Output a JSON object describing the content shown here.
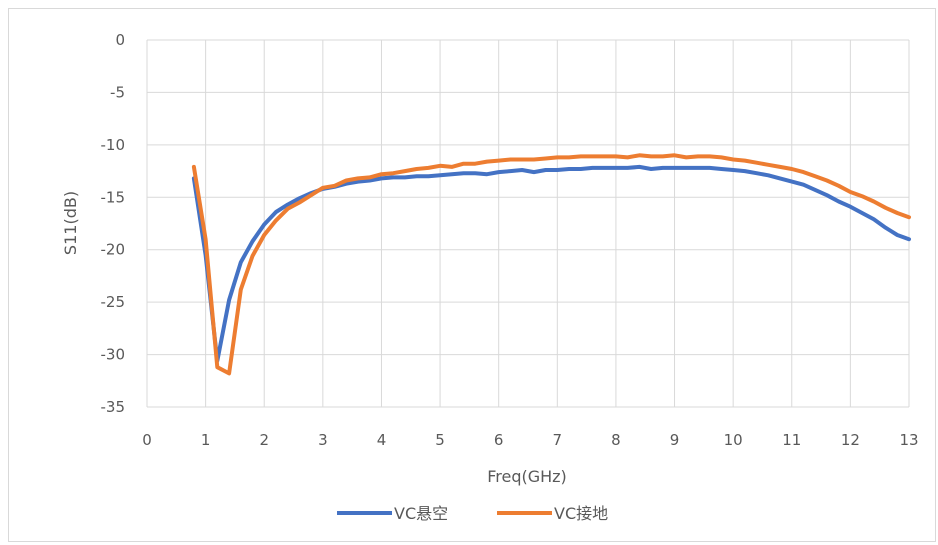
{
  "chart_data": {
    "type": "line",
    "xlabel": "Freq(GHz)",
    "ylabel": "S11(dB)",
    "xlim": [
      0,
      13
    ],
    "ylim": [
      -35,
      0
    ],
    "x_ticks": [
      "0",
      "1",
      "2",
      "3",
      "4",
      "5",
      "6",
      "7",
      "8",
      "9",
      "10",
      "11",
      "12",
      "13"
    ],
    "y_ticks": [
      "0",
      "-5",
      "-10",
      "-15",
      "-20",
      "-25",
      "-30",
      "-35"
    ],
    "grid": true,
    "legend_position": "bottom",
    "series": [
      {
        "name": "VC悬空",
        "color": "#4472c4",
        "x": [
          0.8,
          1.0,
          1.2,
          1.4,
          1.6,
          1.8,
          2.0,
          2.2,
          2.4,
          2.6,
          2.8,
          3.0,
          3.2,
          3.4,
          3.6,
          3.8,
          4.0,
          4.2,
          4.4,
          4.6,
          4.8,
          5.0,
          5.2,
          5.4,
          5.6,
          5.8,
          6.0,
          6.2,
          6.4,
          6.6,
          6.8,
          7.0,
          7.2,
          7.4,
          7.6,
          7.8,
          8.0,
          8.2,
          8.4,
          8.6,
          8.8,
          9.0,
          9.2,
          9.4,
          9.6,
          9.8,
          10.0,
          10.2,
          10.4,
          10.6,
          10.8,
          11.0,
          11.2,
          11.4,
          11.6,
          11.8,
          12.0,
          12.2,
          12.4,
          12.6,
          12.8,
          13.0
        ],
        "y": [
          -13.2,
          -20.5,
          -30.6,
          -24.8,
          -21.2,
          -19.2,
          -17.6,
          -16.4,
          -15.7,
          -15.1,
          -14.6,
          -14.2,
          -14.0,
          -13.7,
          -13.5,
          -13.4,
          -13.2,
          -13.1,
          -13.1,
          -13.0,
          -13.0,
          -12.9,
          -12.8,
          -12.7,
          -12.7,
          -12.8,
          -12.6,
          -12.5,
          -12.4,
          -12.6,
          -12.4,
          -12.4,
          -12.3,
          -12.3,
          -12.2,
          -12.2,
          -12.2,
          -12.2,
          -12.1,
          -12.3,
          -12.2,
          -12.2,
          -12.2,
          -12.2,
          -12.2,
          -12.3,
          -12.4,
          -12.5,
          -12.7,
          -12.9,
          -13.2,
          -13.5,
          -13.8,
          -14.3,
          -14.8,
          -15.4,
          -15.9,
          -16.5,
          -17.1,
          -17.9,
          -18.6,
          -19.0
        ]
      },
      {
        "name": "VC接地",
        "color": "#ed7d31",
        "x": [
          0.8,
          1.0,
          1.2,
          1.4,
          1.6,
          1.8,
          2.0,
          2.2,
          2.4,
          2.6,
          2.8,
          3.0,
          3.2,
          3.4,
          3.6,
          3.8,
          4.0,
          4.2,
          4.4,
          4.6,
          4.8,
          5.0,
          5.2,
          5.4,
          5.6,
          5.8,
          6.0,
          6.2,
          6.4,
          6.6,
          6.8,
          7.0,
          7.2,
          7.4,
          7.6,
          7.8,
          8.0,
          8.2,
          8.4,
          8.6,
          8.8,
          9.0,
          9.2,
          9.4,
          9.6,
          9.8,
          10.0,
          10.2,
          10.4,
          10.6,
          10.8,
          11.0,
          11.2,
          11.4,
          11.6,
          11.8,
          12.0,
          12.2,
          12.4,
          12.6,
          12.8,
          13.0
        ],
        "y": [
          -12.1,
          -19.0,
          -31.2,
          -31.8,
          -23.8,
          -20.6,
          -18.6,
          -17.2,
          -16.1,
          -15.5,
          -14.8,
          -14.1,
          -13.9,
          -13.4,
          -13.2,
          -13.1,
          -12.8,
          -12.7,
          -12.5,
          -12.3,
          -12.2,
          -12.0,
          -12.1,
          -11.8,
          -11.8,
          -11.6,
          -11.5,
          -11.4,
          -11.4,
          -11.4,
          -11.3,
          -11.2,
          -11.2,
          -11.1,
          -11.1,
          -11.1,
          -11.1,
          -11.2,
          -11.0,
          -11.1,
          -11.1,
          -11.0,
          -11.2,
          -11.1,
          -11.1,
          -11.2,
          -11.4,
          -11.5,
          -11.7,
          -11.9,
          -12.1,
          -12.3,
          -12.6,
          -13.0,
          -13.4,
          -13.9,
          -14.5,
          -14.9,
          -15.4,
          -16.0,
          -16.5,
          -16.9
        ]
      }
    ]
  }
}
